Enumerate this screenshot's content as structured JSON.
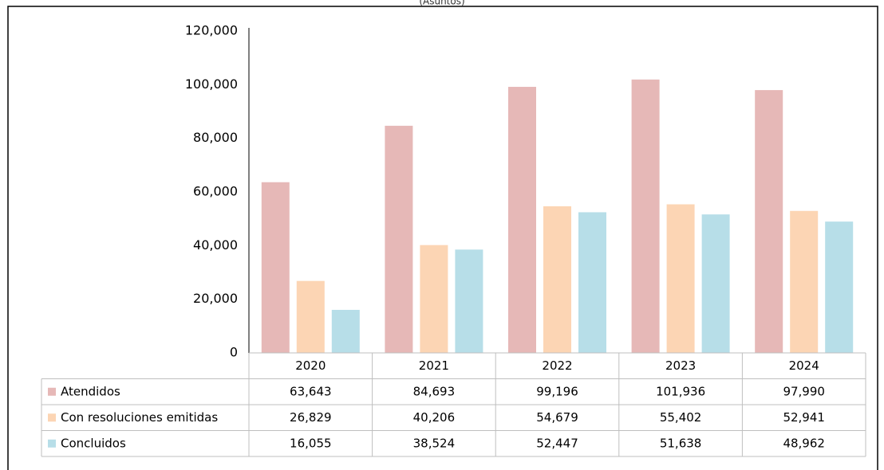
{
  "chart_data": {
    "type": "bar",
    "subtitle": "(Asuntos)",
    "categories": [
      "2020",
      "2021",
      "2022",
      "2023",
      "2024"
    ],
    "series": [
      {
        "name": "Atendidos",
        "color": "#e6b8b7",
        "values": [
          63643,
          84693,
          99196,
          101936,
          97990
        ],
        "value_labels": [
          "63,643",
          "84,693",
          "99,196",
          "101,936",
          "97,990"
        ]
      },
      {
        "name": "Con resoluciones emitidas",
        "color": "#fcd5b4",
        "values": [
          26829,
          40206,
          54679,
          55402,
          52941
        ],
        "value_labels": [
          "26,829",
          "40,206",
          "54,679",
          "55,402",
          "52,941"
        ]
      },
      {
        "name": "Concluidos",
        "color": "#b7dee8",
        "values": [
          16055,
          38524,
          52447,
          51638,
          48962
        ],
        "value_labels": [
          "16,055",
          "38,524",
          "52,447",
          "51,638",
          "48,962"
        ]
      }
    ],
    "ylim": [
      0,
      120000
    ],
    "yticks": [
      0,
      {
        "value": 20000,
        "label": "20,000"
      },
      {
        "value": 40000,
        "label": "40,000"
      },
      {
        "value": 60000,
        "label": "60,000"
      },
      {
        "value": 80000,
        "label": "80,000"
      },
      {
        "value": 100000,
        "label": "100,000"
      },
      {
        "value": 120000,
        "label": "120,000"
      }
    ],
    "grid": false
  }
}
